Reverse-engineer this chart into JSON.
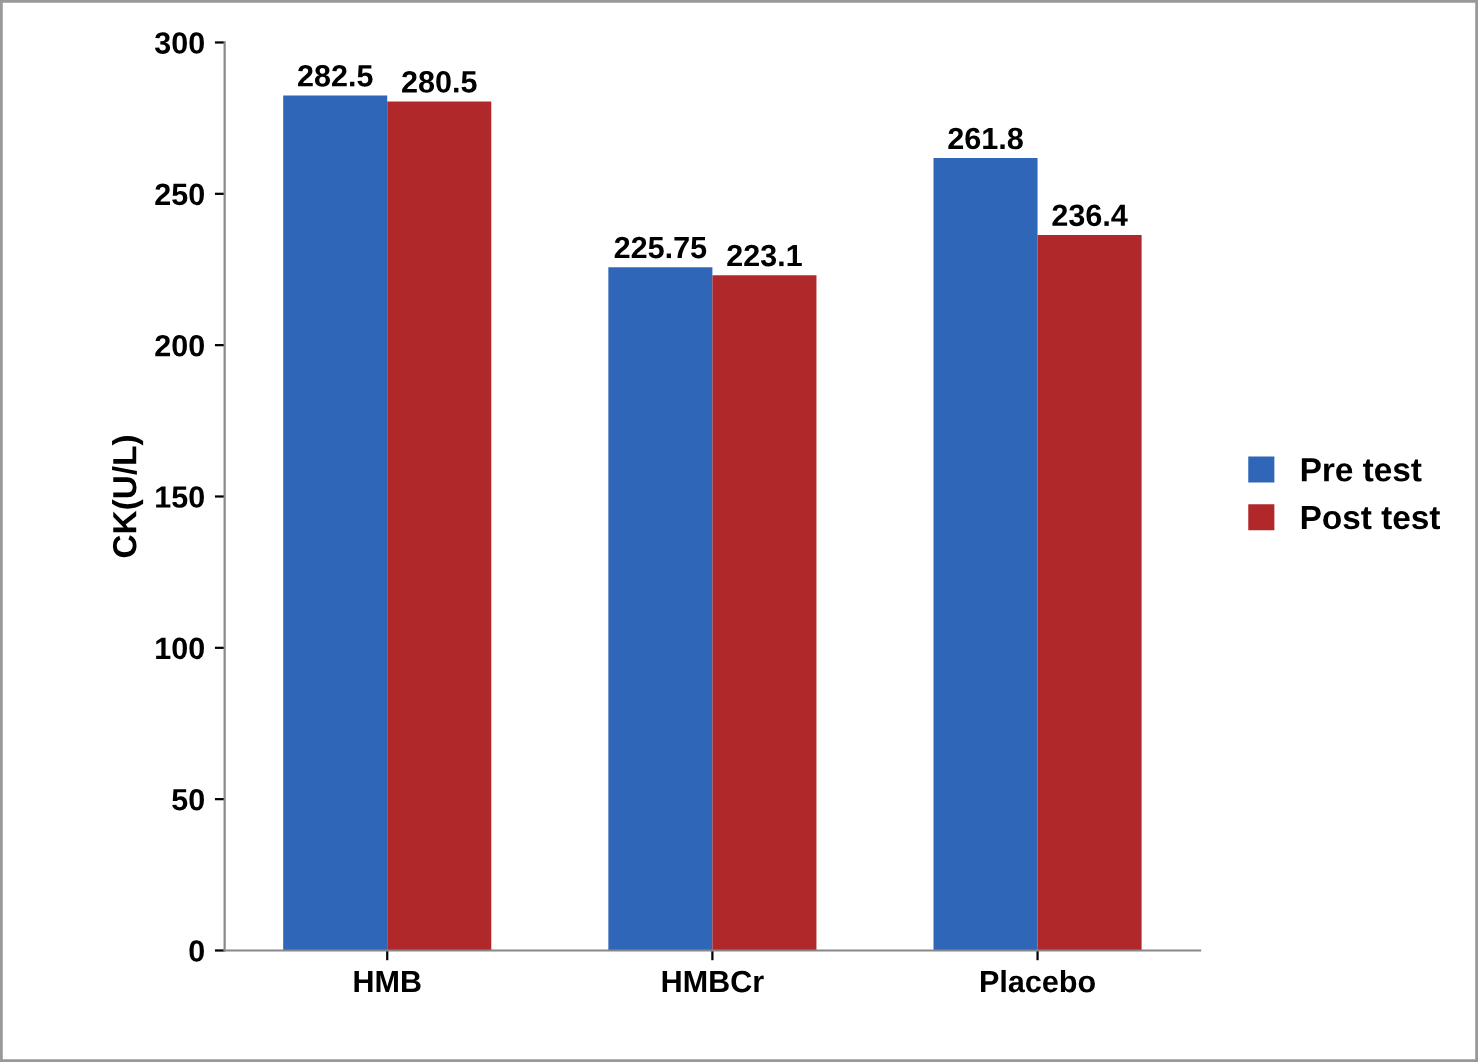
{
  "chart_data": {
    "type": "bar",
    "ylabel": "CK(U/L)",
    "categories": [
      "HMB",
      "HMBCr",
      "Placebo"
    ],
    "series": [
      {
        "name": "Pre test",
        "color": "#2f66b8",
        "values": [
          282.5,
          225.75,
          261.8
        ]
      },
      {
        "name": "Post test",
        "color": "#b0282a",
        "values": [
          280.5,
          223.1,
          236.4
        ]
      }
    ],
    "ylim": [
      0,
      300
    ],
    "yticks": [
      0,
      50,
      100,
      150,
      200,
      250,
      300
    ],
    "data_labels": true,
    "legend": "right",
    "grid": false
  }
}
